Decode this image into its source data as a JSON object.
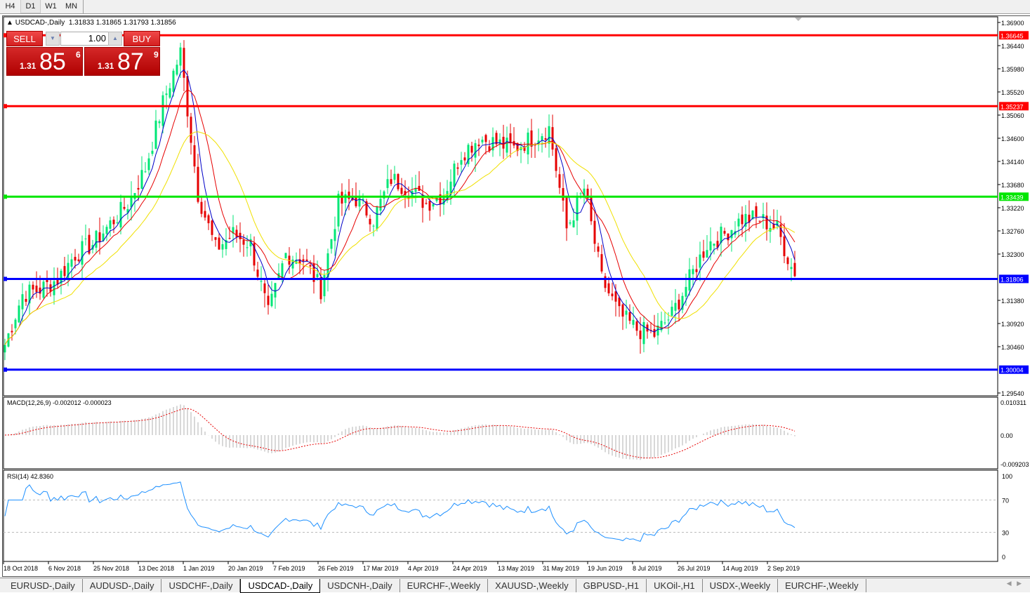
{
  "timeframes": [
    {
      "label": "H4"
    },
    {
      "label": "D1",
      "active": true
    },
    {
      "label": "W1"
    },
    {
      "label": "MN"
    }
  ],
  "chart": {
    "title": "USDCAD-,Daily",
    "ohlc": "1.31833 1.31865 1.31793 1.31856",
    "macd_label": "MACD(12,26,9) -0.002012 -0.000023",
    "rsi_label": "RSI(14) 42.8360",
    "price_axis": [
      "1.36900",
      "1.36440",
      "1.35980",
      "1.35520",
      "1.35060",
      "1.34600",
      "1.34140",
      "1.33680",
      "1.33220",
      "1.32760",
      "1.32300",
      "1.31380",
      "1.30920",
      "1.30460",
      "1.29540"
    ],
    "macd_axis": [
      "0.010311",
      "0.00",
      "-0.009203"
    ],
    "rsi_axis": [
      "100",
      "70",
      "30",
      "0"
    ],
    "date_axis": [
      "18 Oct 2018",
      "6 Nov 2018",
      "25 Nov 2018",
      "13 Dec 2018",
      "1 Jan 2019",
      "20 Jan 2019",
      "7 Feb 2019",
      "26 Feb 2019",
      "17 Mar 2019",
      "4 Apr 2019",
      "24 Apr 2019",
      "13 May 2019",
      "31 May 2019",
      "19 Jun 2019",
      "8 Jul 2019",
      "26 Jul 2019",
      "14 Aug 2019",
      "2 Sep 2019"
    ],
    "levels": [
      {
        "price": "1.36645",
        "color": "#ff0000"
      },
      {
        "price": "1.35237",
        "color": "#ff0000"
      },
      {
        "price": "1.33439",
        "color": "#00e600"
      },
      {
        "price": "1.31806",
        "color": "#0000ff"
      },
      {
        "price": "1.30004",
        "color": "#0000ff"
      }
    ],
    "approx_close_path": [
      1.305,
      1.315,
      1.316,
      1.318,
      1.323,
      1.325,
      1.329,
      1.333,
      1.34,
      1.353,
      1.363,
      1.335,
      1.324,
      1.327,
      1.325,
      1.311,
      1.323,
      1.322,
      1.316,
      1.333,
      1.334,
      1.33,
      1.338,
      1.336,
      1.333,
      1.335,
      1.343,
      1.346,
      1.345,
      1.344,
      1.346,
      1.348,
      1.328,
      1.336,
      1.318,
      1.311,
      1.308,
      1.307,
      1.311,
      1.318,
      1.325,
      1.327,
      1.33,
      1.33,
      1.328,
      1.3186
    ],
    "colors": {
      "bull": "#00e676",
      "bear": "#e60000",
      "ma_fast": "#0000c8",
      "ma_mid": "#e60000",
      "ma_slow": "#f0e000",
      "rsi": "#1e90ff"
    }
  },
  "trade": {
    "sell_label": "SELL",
    "buy_label": "BUY",
    "lot": "1.00",
    "sell_small": "1.31",
    "sell_big": "85",
    "sell_pip": "6",
    "buy_small": "1.31",
    "buy_big": "87",
    "buy_pip": "9"
  },
  "tabs": [
    {
      "label": "EURUSD-,Daily"
    },
    {
      "label": "AUDUSD-,Daily"
    },
    {
      "label": "USDCHF-,Daily"
    },
    {
      "label": "USDCAD-,Daily",
      "active": true
    },
    {
      "label": "USDCNH-,Daily"
    },
    {
      "label": "EURCHF-,Weekly"
    },
    {
      "label": "XAUUSD-,Weekly"
    },
    {
      "label": "GBPUSD-,H1"
    },
    {
      "label": "UKOil-,H1"
    },
    {
      "label": "USDX-,Weekly"
    },
    {
      "label": "EURCHF-,Weekly"
    }
  ]
}
